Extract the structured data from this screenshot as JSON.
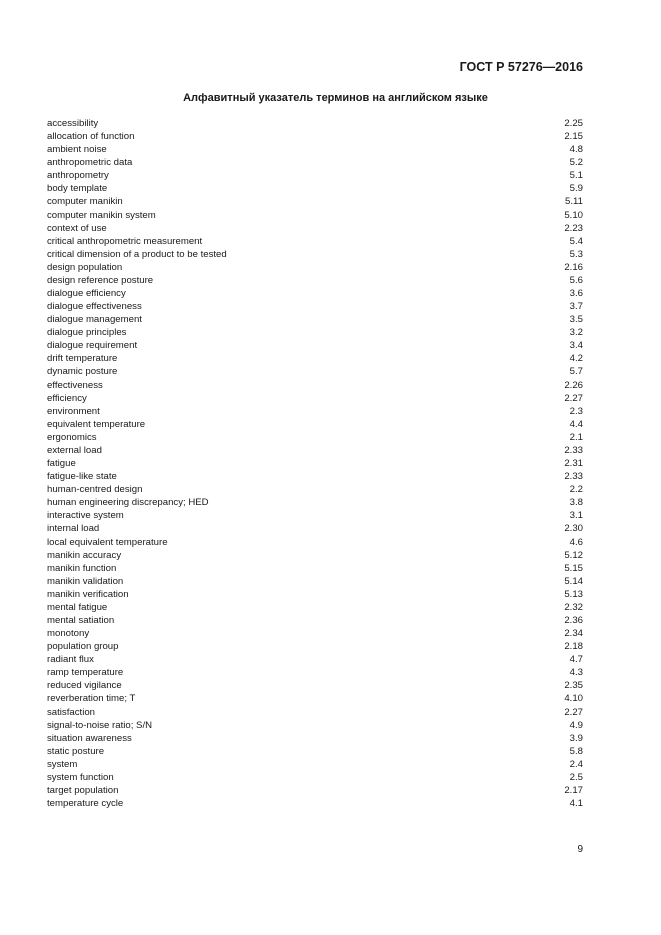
{
  "header": {
    "doc_number": "ГОСТ Р 57276—2016"
  },
  "title": "Алфавитный указатель терминов на английском языке",
  "entries": [
    {
      "term": "accessibility",
      "ref": "2.25"
    },
    {
      "term": "allocation of function",
      "ref": "2.15"
    },
    {
      "term": "ambient noise",
      "ref": "4.8"
    },
    {
      "term": "anthropometric data",
      "ref": "5.2"
    },
    {
      "term": "anthropometry",
      "ref": "5.1"
    },
    {
      "term": "body template",
      "ref": "5.9"
    },
    {
      "term": "computer manikin",
      "ref": "5.11"
    },
    {
      "term": "computer manikin system",
      "ref": "5.10"
    },
    {
      "term": "context of use",
      "ref": "2.23"
    },
    {
      "term": "critical anthropometric measurement",
      "ref": "5.4"
    },
    {
      "term": "critical dimension of a product to be tested",
      "ref": "5.3"
    },
    {
      "term": "design population",
      "ref": "2.16"
    },
    {
      "term": "design reference posture",
      "ref": "5.6"
    },
    {
      "term": "dialogue efficiency",
      "ref": "3.6"
    },
    {
      "term": "dialogue effectiveness",
      "ref": "3.7"
    },
    {
      "term": "dialogue management",
      "ref": "3.5"
    },
    {
      "term": "dialogue principles",
      "ref": "3.2"
    },
    {
      "term": "dialogue requirement",
      "ref": "3.4"
    },
    {
      "term": "drift temperature",
      "ref": "4.2"
    },
    {
      "term": "dynamic posture",
      "ref": "5.7"
    },
    {
      "term": "effectiveness",
      "ref": "2.26"
    },
    {
      "term": "efficiency",
      "ref": "2.27"
    },
    {
      "term": "environment",
      "ref": "2.3"
    },
    {
      "term": "equivalent temperature",
      "ref": "4.4"
    },
    {
      "term": "ergonomics",
      "ref": "2.1"
    },
    {
      "term": "external load",
      "ref": "2.33"
    },
    {
      "term": "fatigue",
      "ref": "2.31"
    },
    {
      "term": "fatigue-like state",
      "ref": "2.33"
    },
    {
      "term": "human-centred design",
      "ref": "2.2"
    },
    {
      "term": "human engineering discrepancy; HED",
      "ref": "3.8"
    },
    {
      "term": "interactive system",
      "ref": "3.1"
    },
    {
      "term": "internal load",
      "ref": "2.30"
    },
    {
      "term": "local equivalent temperature",
      "ref": "4.6"
    },
    {
      "term": "manikin accuracy",
      "ref": "5.12"
    },
    {
      "term": "manikin function",
      "ref": "5.15"
    },
    {
      "term": "manikin validation",
      "ref": "5.14"
    },
    {
      "term": "manikin verification",
      "ref": "5.13"
    },
    {
      "term": "mental fatigue",
      "ref": "2.32"
    },
    {
      "term": "mental satiation",
      "ref": "2.36"
    },
    {
      "term": "monotony",
      "ref": "2.34"
    },
    {
      "term": "population group",
      "ref": "2.18"
    },
    {
      "term": "radiant flux",
      "ref": "4.7"
    },
    {
      "term": "ramp temperature",
      "ref": "4.3"
    },
    {
      "term": "reduced vigilance",
      "ref": "2.35"
    },
    {
      "term": "reverberation time; T",
      "ref": "4.10"
    },
    {
      "term": "satisfaction",
      "ref": "2.27"
    },
    {
      "term": "signal-to-noise ratio; S/N",
      "ref": "4.9"
    },
    {
      "term": "situation awareness",
      "ref": "3.9"
    },
    {
      "term": "static posture",
      "ref": "5.8"
    },
    {
      "term": "system",
      "ref": "2.4"
    },
    {
      "term": "system function",
      "ref": "2.5"
    },
    {
      "term": "target population",
      "ref": "2.17"
    },
    {
      "term": "temperature cycle",
      "ref": "4.1"
    }
  ],
  "page_number": "9"
}
